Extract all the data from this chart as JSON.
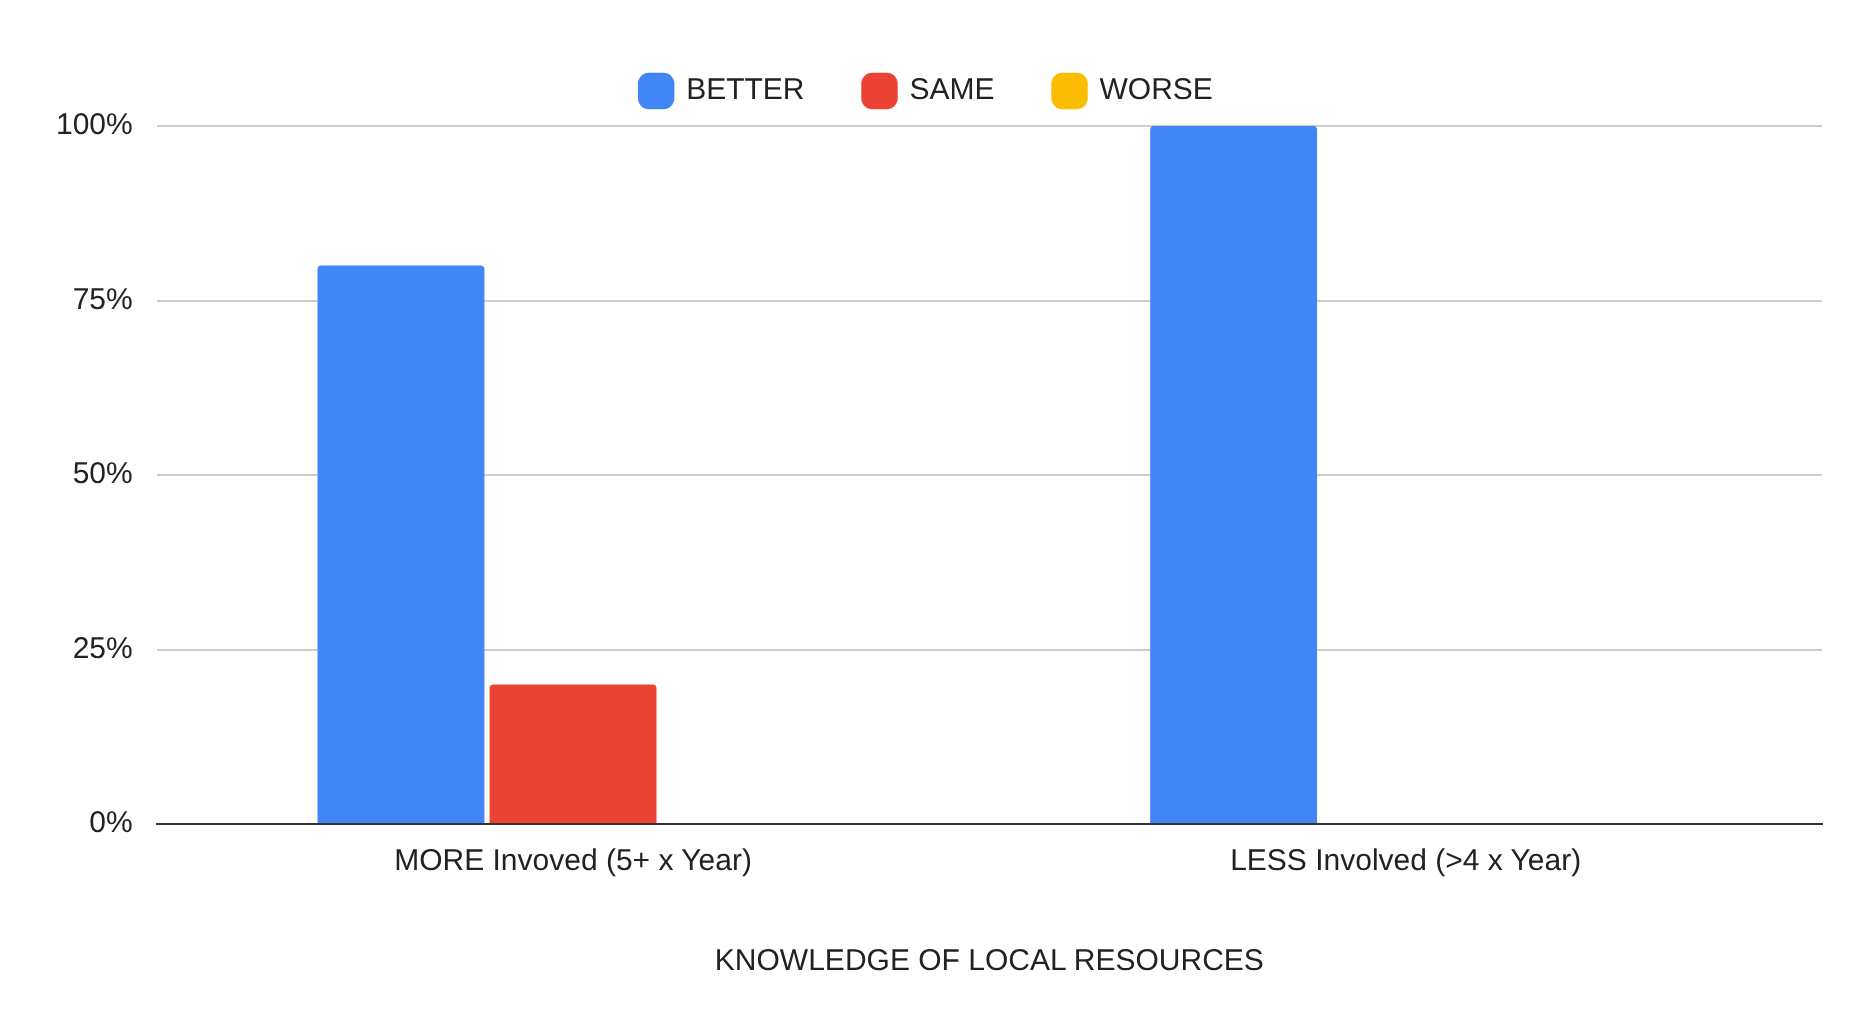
{
  "chart_data": {
    "type": "bar",
    "xlabel": "KNOWLEDGE OF LOCAL RESOURCES",
    "categories": [
      "MORE Invoved (5+ x Year)",
      "LESS Involved (>4 x Year)"
    ],
    "series": [
      {
        "name": "BETTER",
        "color": "#4285f4",
        "values": [
          80,
          100
        ]
      },
      {
        "name": "SAME",
        "color": "#ea4335",
        "values": [
          20,
          0
        ]
      },
      {
        "name": "WORSE",
        "color": "#fbbc04",
        "values": [
          0,
          0
        ]
      }
    ],
    "ylim": [
      0,
      100
    ],
    "yticks": [
      {
        "value": 0,
        "label": "0%"
      },
      {
        "value": 25,
        "label": "25%"
      },
      {
        "value": 50,
        "label": "50%"
      },
      {
        "value": 75,
        "label": "75%"
      },
      {
        "value": 100,
        "label": "100%"
      }
    ],
    "grid": "y",
    "legend": "top"
  }
}
